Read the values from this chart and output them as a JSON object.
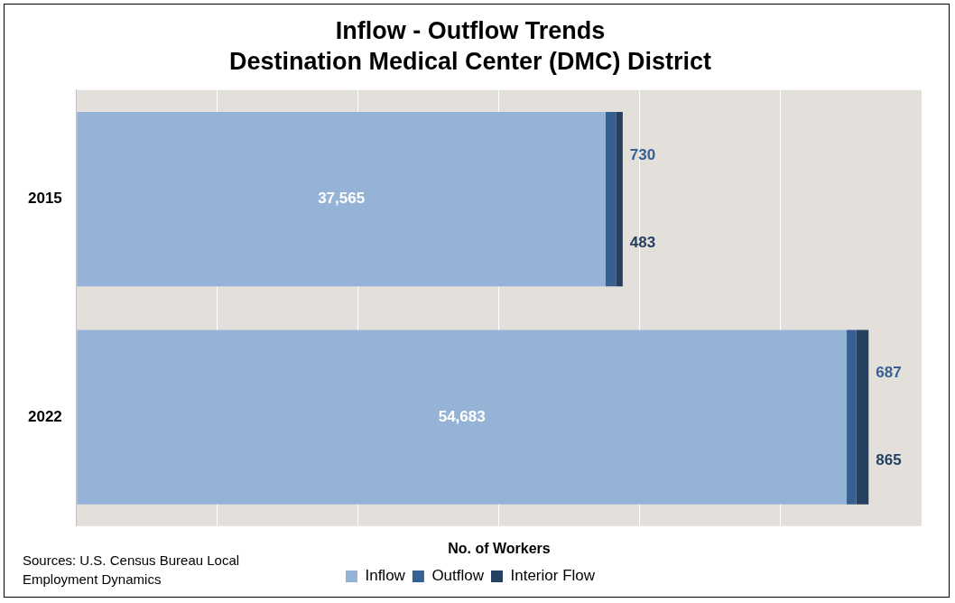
{
  "chart_data": {
    "type": "bar",
    "orientation": "horizontal",
    "stacked": true,
    "title": "Inflow - Outflow Trends",
    "subtitle": "Destination Medical Center (DMC) District",
    "xlabel": "No. of Workers",
    "categories": [
      "2015",
      "2022"
    ],
    "series": [
      {
        "name": "Inflow",
        "color": "#95b3d7",
        "values": [
          37565,
          54683
        ],
        "value_labels": [
          "37,565",
          "54,683"
        ]
      },
      {
        "name": "Outflow",
        "color": "#366092",
        "values": [
          730,
          687
        ],
        "value_labels": [
          "730",
          "687"
        ]
      },
      {
        "name": "Interior Flow",
        "color": "#254061",
        "values": [
          483,
          865
        ],
        "value_labels": [
          "483",
          "865"
        ]
      }
    ],
    "tick_labels": "y",
    "grid": "x",
    "legend": "bottom",
    "annotations": [
      "Sources: U.S. Census Bureau Local Employment Dynamics"
    ]
  }
}
